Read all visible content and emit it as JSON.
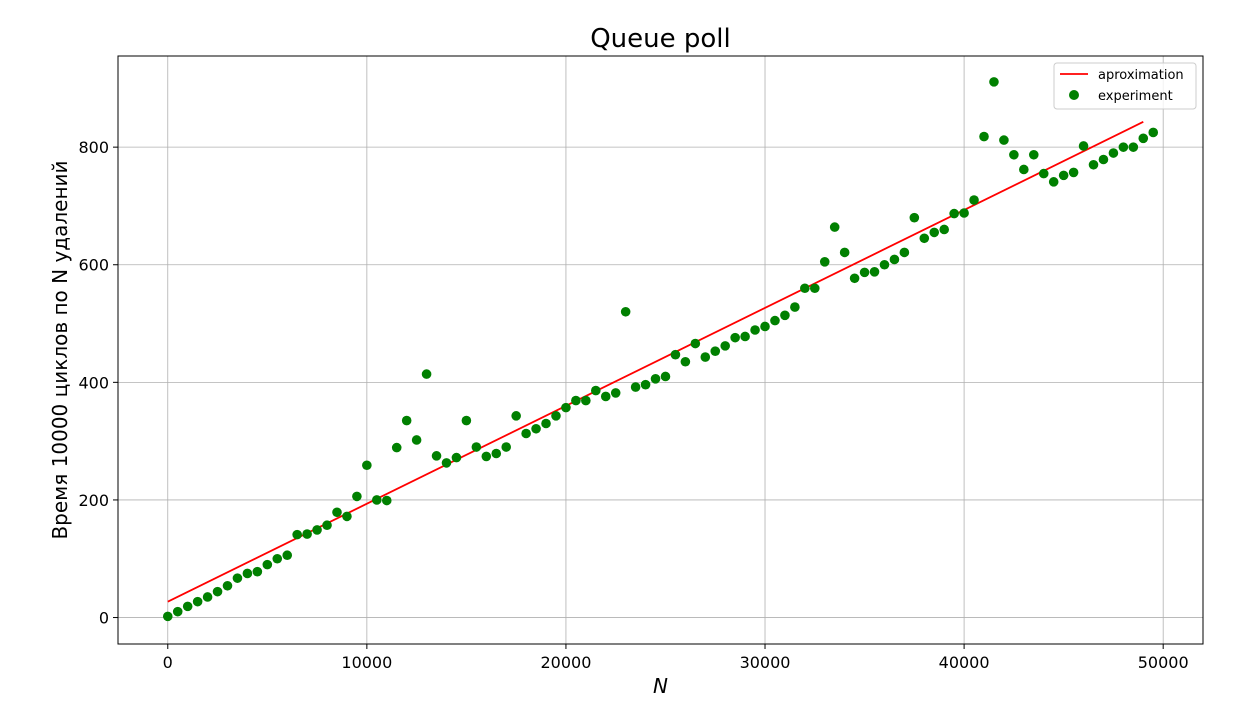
{
  "chart_data": {
    "type": "scatter",
    "title": "Queue poll",
    "xlabel": "N",
    "ylabel": "Время 10000 циклов по N удалений",
    "xlim": [
      -2500,
      52000
    ],
    "ylim": [
      -45,
      955
    ],
    "xticks": [
      0,
      10000,
      20000,
      30000,
      40000,
      50000
    ],
    "yticks": [
      0,
      200,
      400,
      600,
      800
    ],
    "grid": true,
    "legend_position": "top-right",
    "series": [
      {
        "name": "aproximation",
        "kind": "line",
        "color": "#ff0000",
        "x": [
          0,
          49000
        ],
        "y": [
          27,
          843
        ]
      },
      {
        "name": "experiment",
        "kind": "scatter",
        "color": "#008000",
        "x": [
          0,
          500,
          1000,
          1500,
          2000,
          2500,
          3000,
          3500,
          4000,
          4500,
          5000,
          5500,
          6000,
          6500,
          7000,
          7500,
          8000,
          8500,
          9000,
          9500,
          10000,
          10500,
          11000,
          11500,
          12000,
          12500,
          13000,
          13500,
          14000,
          14500,
          15000,
          15500,
          16000,
          16500,
          17000,
          17500,
          18000,
          18500,
          19000,
          19500,
          20000,
          20500,
          21000,
          21500,
          22000,
          22500,
          23000,
          23500,
          24000,
          24500,
          25000,
          25500,
          26000,
          26500,
          27000,
          27500,
          28000,
          28500,
          29000,
          29500,
          30000,
          30500,
          31000,
          31500,
          32000,
          32500,
          33000,
          33500,
          34000,
          34500,
          35000,
          35500,
          36000,
          36500,
          37000,
          37500,
          38000,
          38500,
          39000,
          39500,
          40000,
          40500,
          41000,
          41500,
          42000,
          42500,
          43000,
          43500,
          44000,
          44500,
          45000,
          45500,
          46000,
          46500,
          47000,
          47500,
          48000,
          48500,
          49000,
          49500
        ],
        "y": [
          2,
          10,
          19,
          27,
          35,
          44,
          54,
          67,
          75,
          78,
          90,
          100,
          106,
          141,
          142,
          149,
          157,
          179,
          172,
          206,
          259,
          200,
          199,
          289,
          335,
          302,
          414,
          275,
          263,
          272,
          335,
          290,
          274,
          279,
          290,
          343,
          313,
          321,
          330,
          343,
          357,
          369,
          369,
          386,
          376,
          382,
          520,
          392,
          396,
          406,
          410,
          447,
          435,
          466,
          443,
          453,
          462,
          476,
          478,
          489,
          495,
          505,
          514,
          528,
          560,
          560,
          605,
          664,
          621,
          577,
          587,
          588,
          600,
          609,
          621,
          680,
          645,
          655,
          660,
          687,
          688,
          710,
          818,
          911,
          812,
          787,
          762,
          787,
          755,
          741,
          752,
          757,
          802,
          770,
          779,
          790,
          800,
          800,
          815,
          825
        ]
      }
    ]
  }
}
